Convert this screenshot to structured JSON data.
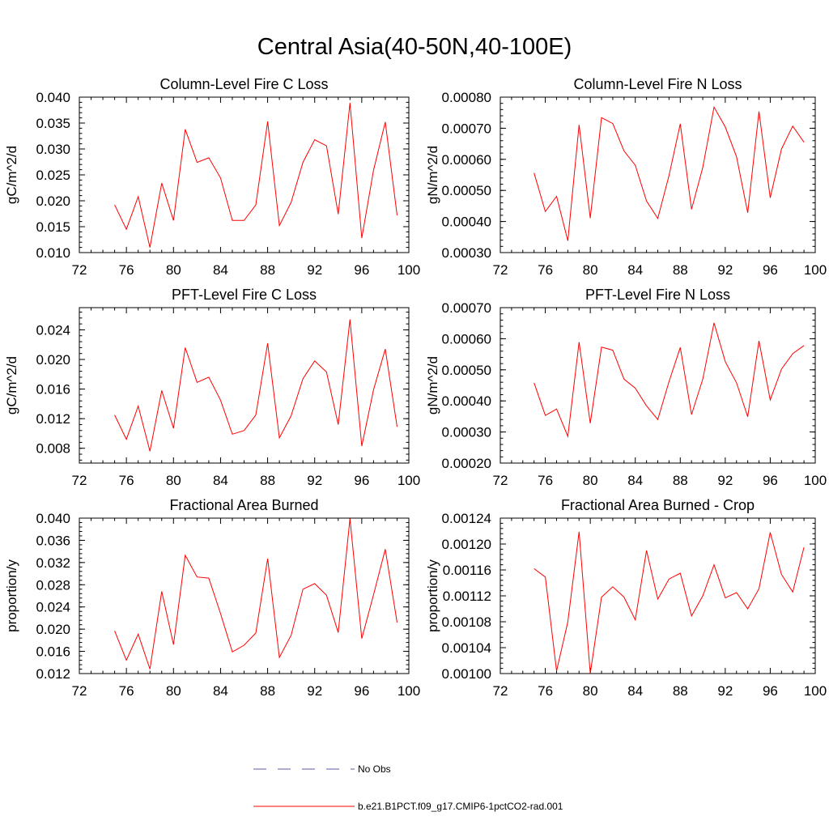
{
  "title": "Central Asia(40-50N,40-100E)",
  "colors": {
    "series": "#ff0000",
    "obs": "#5a5aa8",
    "axis": "#000000"
  },
  "legend": {
    "items": [
      {
        "label": "No Obs",
        "style": "dashed",
        "color": "#5a5aa8"
      },
      {
        "label": "b.e21.B1PCT.f09_g17.CMIP6-1pctCO2-rad.001",
        "style": "solid",
        "color": "#ff0000"
      }
    ]
  },
  "chart_data": [
    {
      "type": "line",
      "title": "Column-Level Fire C Loss",
      "ylabel": "gC/m^2/d",
      "xlim": [
        72,
        100
      ],
      "ylim": [
        0.01,
        0.04
      ],
      "xticks": [
        "72",
        "76",
        "80",
        "84",
        "88",
        "92",
        "96",
        "100"
      ],
      "yticks": [
        "0.010",
        "0.015",
        "0.020",
        "0.025",
        "0.030",
        "0.035",
        "0.040"
      ],
      "x": [
        75,
        76,
        77,
        78,
        79,
        80,
        81,
        82,
        83,
        84,
        85,
        86,
        87,
        88,
        89,
        90,
        91,
        92,
        93,
        94,
        95,
        96,
        97,
        98,
        99
      ],
      "series": [
        {
          "name": "b.e21.B1PCT.f09_g17.CMIP6-1pctCO2-rad.001",
          "values": [
            0.0192,
            0.0145,
            0.0208,
            0.011,
            0.0234,
            0.0162,
            0.0338,
            0.0274,
            0.0283,
            0.0244,
            0.0162,
            0.0162,
            0.0192,
            0.0353,
            0.0152,
            0.0197,
            0.0274,
            0.0318,
            0.0306,
            0.0174,
            0.0389,
            0.0128,
            0.0259,
            0.0352,
            0.0172
          ]
        }
      ]
    },
    {
      "type": "line",
      "title": "Column-Level Fire N Loss",
      "ylabel": "gN/m^2/d",
      "xlim": [
        72,
        100
      ],
      "ylim": [
        0.0003,
        0.0008
      ],
      "xticks": [
        "72",
        "76",
        "80",
        "84",
        "88",
        "92",
        "96",
        "100"
      ],
      "yticks": [
        "0.00030",
        "0.00040",
        "0.00050",
        "0.00060",
        "0.00070",
        "0.00080"
      ],
      "x": [
        75,
        76,
        77,
        78,
        79,
        80,
        81,
        82,
        83,
        84,
        85,
        86,
        87,
        88,
        89,
        90,
        91,
        92,
        93,
        94,
        95,
        96,
        97,
        98,
        99
      ],
      "series": [
        {
          "name": "b.e21.B1PCT.f09_g17.CMIP6-1pctCO2-rad.001",
          "values": [
            0.000556,
            0.000432,
            0.000481,
            0.000338,
            0.000711,
            0.000411,
            0.000734,
            0.000715,
            0.000627,
            0.000581,
            0.000466,
            0.00041,
            0.000548,
            0.000714,
            0.000439,
            0.000574,
            0.000768,
            0.000704,
            0.000608,
            0.000428,
            0.000754,
            0.000476,
            0.000633,
            0.000707,
            0.000655
          ]
        }
      ]
    },
    {
      "type": "line",
      "title": "PFT-Level Fire C Loss",
      "ylabel": "gC/m^2/d",
      "xlim": [
        72,
        100
      ],
      "ylim": [
        0.006,
        0.027
      ],
      "xticks": [
        "72",
        "76",
        "80",
        "84",
        "88",
        "92",
        "96",
        "100"
      ],
      "yticks": [
        "0.008",
        "0.012",
        "0.016",
        "0.020",
        "0.024"
      ],
      "x": [
        75,
        76,
        77,
        78,
        79,
        80,
        81,
        82,
        83,
        84,
        85,
        86,
        87,
        88,
        89,
        90,
        91,
        92,
        93,
        94,
        95,
        96,
        97,
        98,
        99
      ],
      "series": [
        {
          "name": "b.e21.B1PCT.f09_g17.CMIP6-1pctCO2-rad.001",
          "values": [
            0.0125,
            0.0092,
            0.0137,
            0.0076,
            0.0158,
            0.0107,
            0.0216,
            0.0169,
            0.0176,
            0.0145,
            0.0099,
            0.0104,
            0.0125,
            0.0222,
            0.0094,
            0.0124,
            0.0174,
            0.0198,
            0.0183,
            0.0112,
            0.0254,
            0.0083,
            0.0159,
            0.0214,
            0.0109
          ]
        }
      ]
    },
    {
      "type": "line",
      "title": "PFT-Level Fire N Loss",
      "ylabel": "gN/m^2/d",
      "xlim": [
        72,
        100
      ],
      "ylim": [
        0.0002,
        0.0007
      ],
      "xticks": [
        "72",
        "76",
        "80",
        "84",
        "88",
        "92",
        "96",
        "100"
      ],
      "yticks": [
        "0.00020",
        "0.00030",
        "0.00040",
        "0.00050",
        "0.00060",
        "0.00070"
      ],
      "x": [
        75,
        76,
        77,
        78,
        79,
        80,
        81,
        82,
        83,
        84,
        85,
        86,
        87,
        88,
        89,
        90,
        91,
        92,
        93,
        94,
        95,
        96,
        97,
        98,
        99
      ],
      "series": [
        {
          "name": "b.e21.B1PCT.f09_g17.CMIP6-1pctCO2-rad.001",
          "values": [
            0.000458,
            0.000353,
            0.000374,
            0.000286,
            0.000589,
            0.000328,
            0.000573,
            0.000563,
            0.00047,
            0.000441,
            0.000384,
            0.00034,
            0.000462,
            0.000572,
            0.000356,
            0.00047,
            0.000651,
            0.000526,
            0.000458,
            0.000349,
            0.000593,
            0.000403,
            0.000502,
            0.000552,
            0.000578
          ]
        }
      ]
    },
    {
      "type": "line",
      "title": "Fractional Area Burned",
      "ylabel": "proportion/y",
      "xlim": [
        72,
        100
      ],
      "ylim": [
        0.012,
        0.04
      ],
      "xticks": [
        "72",
        "76",
        "80",
        "84",
        "88",
        "92",
        "96",
        "100"
      ],
      "yticks": [
        "0.012",
        "0.016",
        "0.020",
        "0.024",
        "0.028",
        "0.032",
        "0.036",
        "0.040"
      ],
      "x": [
        75,
        76,
        77,
        78,
        79,
        80,
        81,
        82,
        83,
        84,
        85,
        86,
        87,
        88,
        89,
        90,
        91,
        92,
        93,
        94,
        95,
        96,
        97,
        98,
        99
      ],
      "series": [
        {
          "name": "b.e21.B1PCT.f09_g17.CMIP6-1pctCO2-rad.001",
          "values": [
            0.0197,
            0.0144,
            0.0191,
            0.0128,
            0.0268,
            0.0172,
            0.0333,
            0.0294,
            0.0292,
            0.0228,
            0.0159,
            0.0171,
            0.0193,
            0.0327,
            0.0149,
            0.0189,
            0.0272,
            0.0282,
            0.0261,
            0.0194,
            0.0399,
            0.0183,
            0.0262,
            0.0344,
            0.0212
          ]
        }
      ]
    },
    {
      "type": "line",
      "title": "Fractional Area Burned - Crop",
      "ylabel": "proportion/y",
      "xlim": [
        72,
        100
      ],
      "ylim": [
        0.001,
        0.00124
      ],
      "xticks": [
        "72",
        "76",
        "80",
        "84",
        "88",
        "92",
        "96",
        "100"
      ],
      "yticks": [
        "0.00100",
        "0.00104",
        "0.00108",
        "0.00112",
        "0.00116",
        "0.00120",
        "0.00124"
      ],
      "x": [
        75,
        76,
        77,
        78,
        79,
        80,
        81,
        82,
        83,
        84,
        85,
        86,
        87,
        88,
        89,
        90,
        91,
        92,
        93,
        94,
        95,
        96,
        97,
        98,
        99
      ],
      "series": [
        {
          "name": "b.e21.B1PCT.f09_g17.CMIP6-1pctCO2-rad.001",
          "values": [
            0.001162,
            0.001149,
            0.001004,
            0.00108,
            0.001219,
            0.001,
            0.001118,
            0.001134,
            0.001118,
            0.001083,
            0.00119,
            0.001115,
            0.001146,
            0.001155,
            0.001089,
            0.00112,
            0.001168,
            0.001117,
            0.001125,
            0.0011,
            0.001131,
            0.001218,
            0.001153,
            0.001126,
            0.001195
          ]
        }
      ]
    }
  ]
}
